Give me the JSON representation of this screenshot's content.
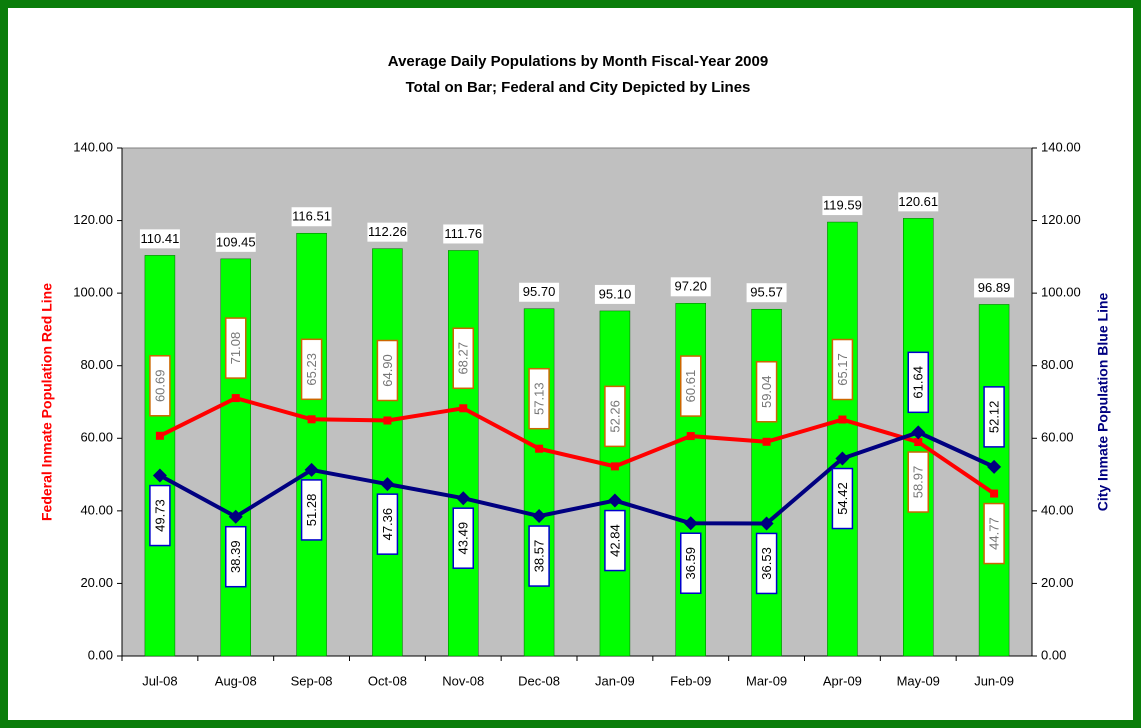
{
  "chart_data": {
    "type": "bar",
    "title": "Average Daily Populations by Month Fiscal-Year 2009",
    "subtitle": "Total on Bar; Federal and City Depicted by Lines",
    "ylabel": "Federal Inmate Population Red Line",
    "y2label": "City Inmate Population Blue Line",
    "categories": [
      "Jul-08",
      "Aug-08",
      "Sep-08",
      "Oct-08",
      "Nov-08",
      "Dec-08",
      "Jan-09",
      "Feb-09",
      "Mar-09",
      "Apr-09",
      "May-09",
      "Jun-09"
    ],
    "series": [
      {
        "type": "bar",
        "color": "#00ff00",
        "values": [
          110.41,
          109.45,
          116.51,
          112.26,
          111.76,
          95.7,
          95.1,
          97.2,
          95.57,
          119.59,
          120.61,
          96.89
        ],
        "value_labels": [
          "110.41",
          "109.45",
          "116.51",
          "112.26",
          "111.76",
          "95.70",
          "95.10",
          "97.20",
          "95.57",
          "119.59",
          "120.61",
          "96.89"
        ]
      },
      {
        "type": "line",
        "color": "#ff0000",
        "marker": "square",
        "values": [
          60.69,
          71.08,
          65.23,
          64.9,
          68.27,
          57.13,
          52.26,
          60.61,
          59.04,
          65.17,
          58.97,
          44.77
        ],
        "value_labels": [
          "60.69",
          "71.08",
          "65.23",
          "64.90",
          "68.27",
          "57.13",
          "52.26",
          "60.61",
          "59.04",
          "65.17",
          "58.97",
          "44.77"
        ]
      },
      {
        "type": "line",
        "axis": "y2",
        "color": "#000080",
        "marker": "diamond",
        "values": [
          49.73,
          38.39,
          51.28,
          47.36,
          43.49,
          38.57,
          42.84,
          36.59,
          36.53,
          54.42,
          61.64,
          52.12
        ]
      }
    ],
    "ylim": [
      0,
      140
    ],
    "yticks": [
      {
        "value": 0,
        "label": "0.00"
      },
      {
        "value": 20,
        "label": "20.00"
      },
      {
        "value": 40,
        "label": "40.00"
      },
      {
        "value": 60,
        "label": "60.00"
      },
      {
        "value": 80,
        "label": "80.00"
      },
      {
        "value": 100,
        "label": "100.00"
      },
      {
        "value": 120,
        "label": "120.00"
      },
      {
        "value": 140,
        "label": "140.00"
      }
    ],
    "y2lim": [
      0,
      140
    ],
    "y2ticks": [
      {
        "value": 0,
        "label": "0.00"
      },
      {
        "value": 20,
        "label": "20.00"
      },
      {
        "value": 40,
        "label": "40.00"
      },
      {
        "value": 60,
        "label": "60.00"
      },
      {
        "value": 80,
        "label": "80.00"
      },
      {
        "value": 100,
        "label": "100.00"
      },
      {
        "value": 120,
        "label": "120.00"
      },
      {
        "value": 140,
        "label": "140.00"
      }
    ],
    "plot_background": "#c0c0c0"
  }
}
